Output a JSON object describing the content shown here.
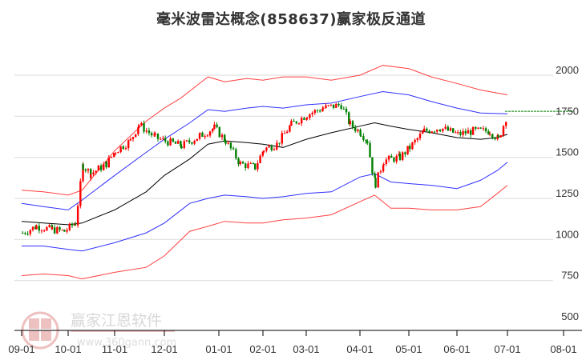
{
  "title": "毫米波雷达概念(858637)赢家极反通道",
  "watermark": {
    "brand": "赢家江恩软件",
    "url": "www.360gann.com",
    "seal_chars": [
      "江",
      "赢",
      "恩",
      "家"
    ]
  },
  "colors": {
    "up": "#ff0000",
    "down": "#008000",
    "outer_band": "#ff4040",
    "inner_band": "#3030ff",
    "mid_line": "#000000",
    "last_price_line": "#008000",
    "grid": "#e0e0e0",
    "axis": "#000000"
  },
  "chart_data": {
    "type": "candlestick_with_bands",
    "title": "毫米波雷达概念(858637)赢家极反通道",
    "xlabel": "",
    "ylabel": "",
    "ylim": [
      500,
      2000
    ],
    "y_ticks": [
      2000,
      1750,
      1500,
      1250,
      1000,
      750,
      500
    ],
    "x_ticks": [
      "09-01",
      "10-01",
      "11-01",
      "12-01",
      "01-01",
      "02-01",
      "03-01",
      "04-01",
      "05-01",
      "06-01",
      "07-01",
      "08-01"
    ],
    "grid": true,
    "last_price": 1780,
    "series": [
      {
        "name": "outer_upper",
        "color": "red",
        "points": [
          [
            "09-01",
            1300
          ],
          [
            "09-15",
            1290
          ],
          [
            "10-01",
            1270
          ],
          [
            "10-10",
            1300
          ],
          [
            "11-01",
            1540
          ],
          [
            "11-20",
            1720
          ],
          [
            "12-01",
            1800
          ],
          [
            "12-10",
            1860
          ],
          [
            "12-25",
            1990
          ],
          [
            "01-05",
            1960
          ],
          [
            "01-20",
            1980
          ],
          [
            "02-01",
            1970
          ],
          [
            "02-15",
            1990
          ],
          [
            "03-01",
            1990
          ],
          [
            "03-15",
            1970
          ],
          [
            "04-01",
            2000
          ],
          [
            "04-15",
            2060
          ],
          [
            "05-01",
            2040
          ],
          [
            "05-15",
            1990
          ],
          [
            "06-01",
            1950
          ],
          [
            "06-15",
            1910
          ],
          [
            "07-01",
            1880
          ]
        ]
      },
      {
        "name": "inner_upper",
        "color": "blue",
        "points": [
          [
            "09-01",
            1220
          ],
          [
            "09-15",
            1200
          ],
          [
            "10-01",
            1180
          ],
          [
            "10-10",
            1240
          ],
          [
            "11-01",
            1390
          ],
          [
            "11-20",
            1530
          ],
          [
            "12-01",
            1610
          ],
          [
            "12-15",
            1710
          ],
          [
            "12-25",
            1790
          ],
          [
            "01-05",
            1780
          ],
          [
            "01-20",
            1800
          ],
          [
            "02-01",
            1810
          ],
          [
            "02-15",
            1800
          ],
          [
            "03-01",
            1820
          ],
          [
            "03-15",
            1830
          ],
          [
            "04-01",
            1870
          ],
          [
            "04-15",
            1900
          ],
          [
            "05-01",
            1880
          ],
          [
            "05-15",
            1840
          ],
          [
            "06-01",
            1800
          ],
          [
            "06-15",
            1770
          ],
          [
            "07-01",
            1765
          ]
        ]
      },
      {
        "name": "middle",
        "color": "black",
        "points": [
          [
            "09-01",
            1110
          ],
          [
            "09-15",
            1100
          ],
          [
            "10-01",
            1090
          ],
          [
            "10-10",
            1100
          ],
          [
            "11-01",
            1180
          ],
          [
            "11-20",
            1290
          ],
          [
            "12-01",
            1390
          ],
          [
            "12-15",
            1490
          ],
          [
            "12-25",
            1580
          ],
          [
            "01-05",
            1600
          ],
          [
            "01-20",
            1590
          ],
          [
            "02-01",
            1580
          ],
          [
            "02-15",
            1560
          ],
          [
            "03-01",
            1610
          ],
          [
            "03-15",
            1650
          ],
          [
            "04-01",
            1690
          ],
          [
            "04-10",
            1710
          ],
          [
            "04-20",
            1690
          ],
          [
            "05-01",
            1670
          ],
          [
            "05-15",
            1650
          ],
          [
            "06-01",
            1620
          ],
          [
            "06-15",
            1610
          ],
          [
            "06-25",
            1620
          ],
          [
            "07-01",
            1640
          ]
        ]
      },
      {
        "name": "inner_lower",
        "color": "blue",
        "points": [
          [
            "09-01",
            960
          ],
          [
            "09-15",
            960
          ],
          [
            "10-01",
            940
          ],
          [
            "10-10",
            930
          ],
          [
            "11-01",
            980
          ],
          [
            "11-20",
            1040
          ],
          [
            "12-01",
            1100
          ],
          [
            "12-15",
            1220
          ],
          [
            "12-25",
            1250
          ],
          [
            "01-05",
            1270
          ],
          [
            "01-20",
            1260
          ],
          [
            "02-01",
            1250
          ],
          [
            "02-15",
            1260
          ],
          [
            "03-01",
            1280
          ],
          [
            "03-15",
            1290
          ],
          [
            "04-01",
            1380
          ],
          [
            "04-10",
            1400
          ],
          [
            "04-20",
            1350
          ],
          [
            "05-01",
            1340
          ],
          [
            "05-15",
            1330
          ],
          [
            "06-01",
            1310
          ],
          [
            "06-15",
            1360
          ],
          [
            "06-25",
            1420
          ],
          [
            "07-01",
            1470
          ]
        ]
      },
      {
        "name": "outer_lower",
        "color": "red",
        "points": [
          [
            "09-01",
            780
          ],
          [
            "09-15",
            790
          ],
          [
            "10-01",
            780
          ],
          [
            "10-10",
            760
          ],
          [
            "11-01",
            800
          ],
          [
            "11-20",
            830
          ],
          [
            "12-01",
            900
          ],
          [
            "12-15",
            1050
          ],
          [
            "12-25",
            1080
          ],
          [
            "01-05",
            1110
          ],
          [
            "01-20",
            1100
          ],
          [
            "02-01",
            1100
          ],
          [
            "02-15",
            1120
          ],
          [
            "03-01",
            1130
          ],
          [
            "03-15",
            1150
          ],
          [
            "04-01",
            1230
          ],
          [
            "04-10",
            1270
          ],
          [
            "04-20",
            1190
          ],
          [
            "05-01",
            1190
          ],
          [
            "05-15",
            1180
          ],
          [
            "06-01",
            1180
          ],
          [
            "06-15",
            1200
          ],
          [
            "06-25",
            1280
          ],
          [
            "07-01",
            1330
          ]
        ]
      }
    ],
    "candles_close_approx": [
      [
        "09-01",
        1040
      ],
      [
        "09-10",
        1080
      ],
      [
        "09-20",
        1060
      ],
      [
        "09-28",
        1050
      ],
      [
        "10-05",
        1100
      ],
      [
        "10-10",
        1450
      ],
      [
        "10-15",
        1400
      ],
      [
        "10-25",
        1460
      ],
      [
        "11-01",
        1540
      ],
      [
        "11-10",
        1600
      ],
      [
        "11-15",
        1700
      ],
      [
        "11-25",
        1620
      ],
      [
        "12-01",
        1600
      ],
      [
        "12-10",
        1570
      ],
      [
        "12-20",
        1630
      ],
      [
        "12-28",
        1680
      ],
      [
        "01-05",
        1600
      ],
      [
        "01-15",
        1460
      ],
      [
        "01-25",
        1440
      ],
      [
        "02-01",
        1550
      ],
      [
        "02-10",
        1580
      ],
      [
        "02-20",
        1700
      ],
      [
        "03-01",
        1760
      ],
      [
        "03-10",
        1800
      ],
      [
        "03-20",
        1820
      ],
      [
        "03-25",
        1700
      ],
      [
        "04-01",
        1650
      ],
      [
        "04-05",
        1600
      ],
      [
        "04-08",
        1420
      ],
      [
        "04-10",
        1340
      ],
      [
        "04-15",
        1480
      ],
      [
        "04-25",
        1500
      ],
      [
        "05-01",
        1560
      ],
      [
        "05-10",
        1660
      ],
      [
        "05-20",
        1680
      ],
      [
        "06-01",
        1640
      ],
      [
        "06-10",
        1660
      ],
      [
        "06-20",
        1660
      ],
      [
        "06-25",
        1610
      ],
      [
        "07-01",
        1780
      ]
    ]
  }
}
